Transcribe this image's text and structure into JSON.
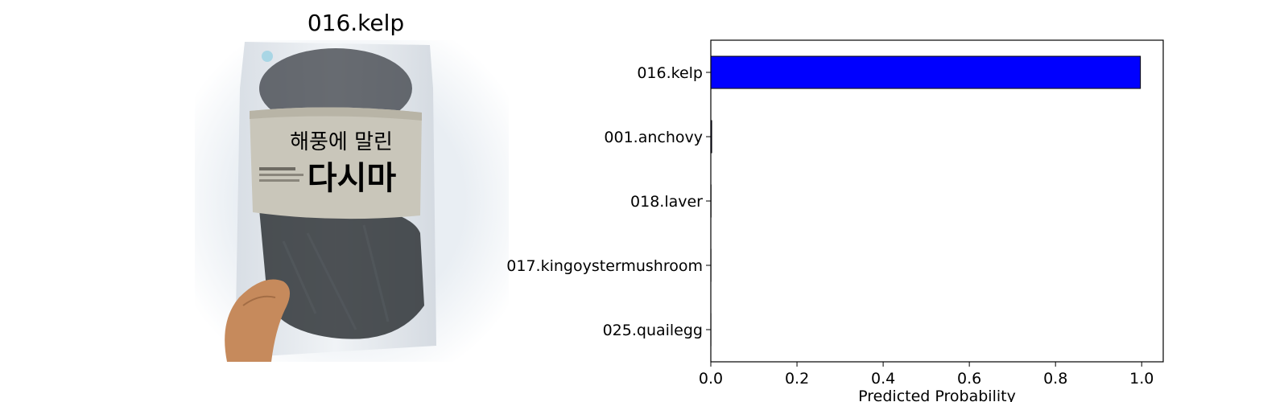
{
  "image_panel": {
    "title": "016.kelp",
    "package_text_line1": "해풍에 말린",
    "package_text_line2": "다시마"
  },
  "chart_data": {
    "type": "bar",
    "orientation": "horizontal",
    "categories": [
      "016.kelp",
      "001.anchovy",
      "018.laver",
      "017.kingoystermushroom",
      "025.quailegg"
    ],
    "values": [
      0.997,
      0.002,
      0.0005,
      0.0003,
      0.0002
    ],
    "xlabel": "Predicted Probability",
    "ylabel": "",
    "title": "",
    "xlim": [
      0.0,
      1.05
    ],
    "xticks": [
      "0.0",
      "0.2",
      "0.4",
      "0.6",
      "0.8",
      "1.0"
    ],
    "bar_color": "#0000ff",
    "grid": false
  }
}
